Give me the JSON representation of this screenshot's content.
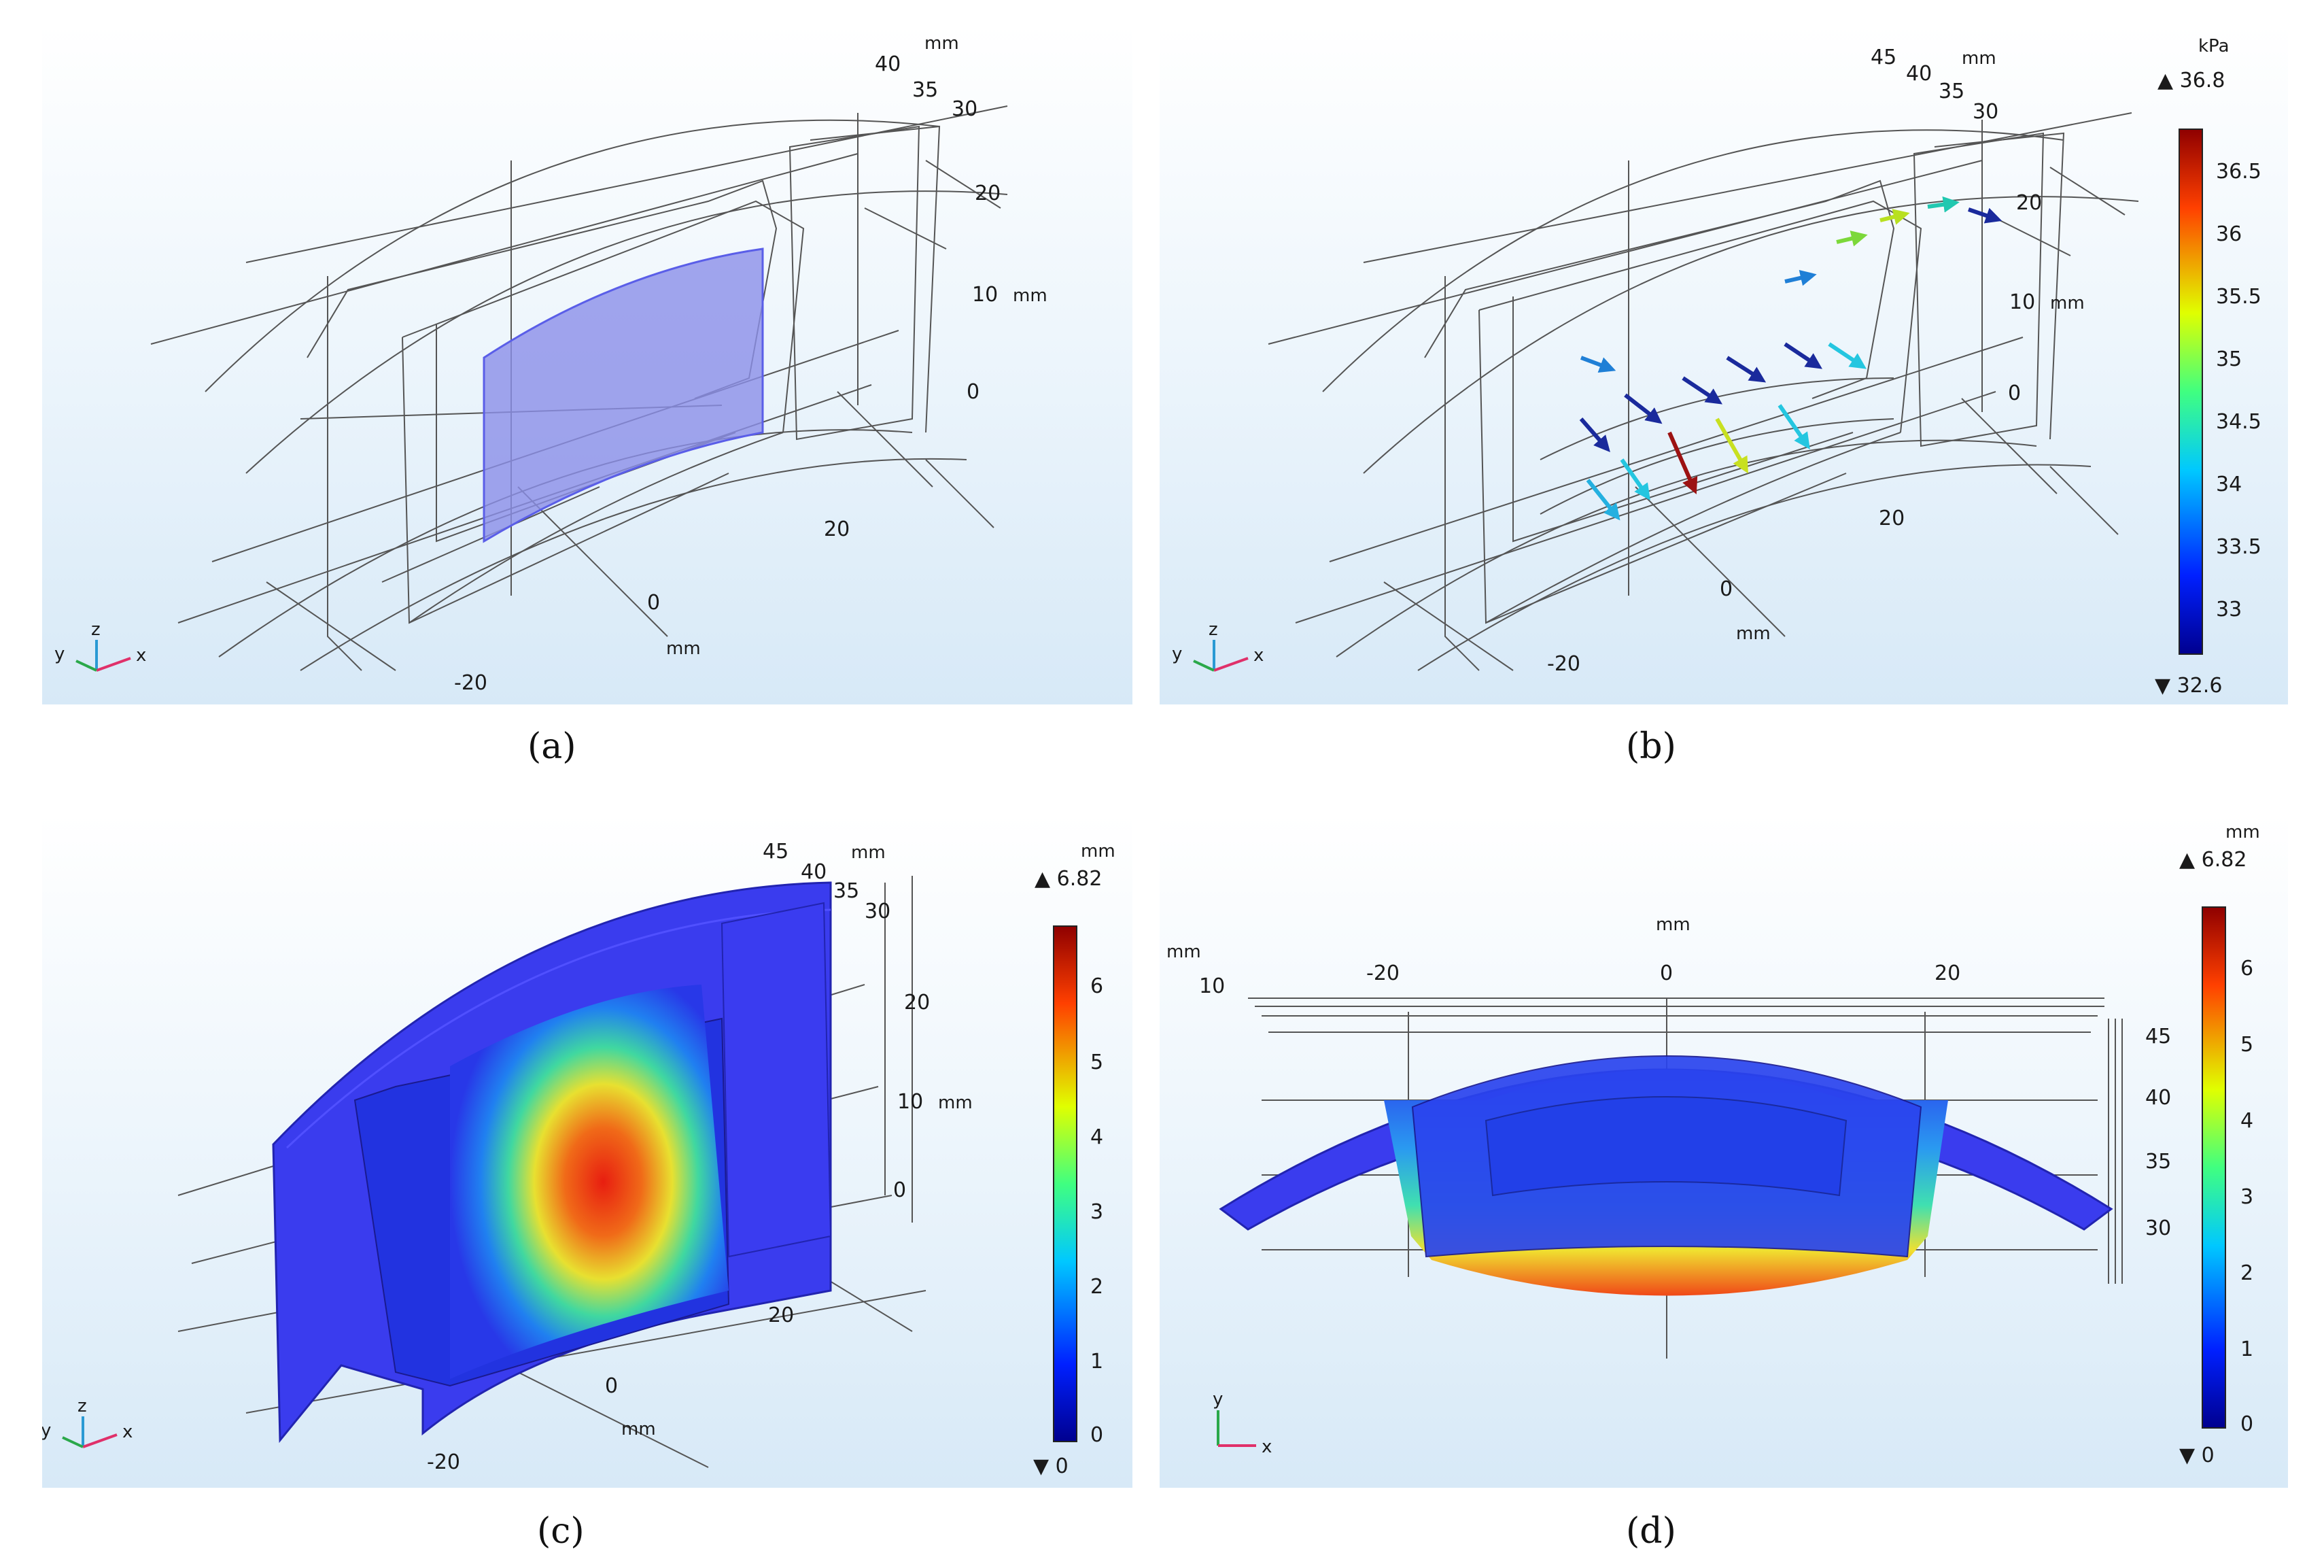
{
  "captions": {
    "a": "(a)",
    "b": "(b)",
    "c": "(c)",
    "d": "(d)"
  },
  "units": {
    "mm": "mm",
    "kpa": "kPa"
  },
  "axis_labels": {
    "x": "x",
    "y": "y",
    "z": "z"
  },
  "panel_a": {
    "depth_ticks": [
      "40",
      "35",
      "30"
    ],
    "z_ticks": [
      "20",
      "10",
      "0"
    ],
    "x_ticks": [
      "20",
      "0",
      "-20"
    ],
    "highlight_color": "#8b8fe8"
  },
  "panel_b": {
    "depth_ticks": [
      "45",
      "40",
      "35",
      "30"
    ],
    "z_ticks": [
      "20",
      "10",
      "0"
    ],
    "x_ticks": [
      "20",
      "0",
      "-20"
    ],
    "colorbar": {
      "max_label": "▲ 36.8",
      "min_label": "▼ 32.6",
      "ticks": [
        "36.5",
        "36",
        "35.5",
        "35",
        "34.5",
        "34",
        "33.5",
        "33"
      ]
    }
  },
  "panel_c": {
    "depth_ticks": [
      "45",
      "40",
      "35",
      "30"
    ],
    "z_ticks": [
      "20",
      "10",
      "0"
    ],
    "x_ticks": [
      "20",
      "0",
      "-20"
    ],
    "colorbar": {
      "max_label": "▲ 6.82",
      "min_label": "▼ 0",
      "ticks": [
        "6",
        "5",
        "4",
        "3",
        "2",
        "1",
        "0"
      ]
    }
  },
  "panel_d": {
    "x_ticks": [
      "-20",
      "0",
      "20"
    ],
    "left_tick": "10",
    "z_ticks": [
      "45",
      "40",
      "35",
      "30"
    ],
    "colorbar": {
      "max_label": "▲ 6.82",
      "min_label": "▼ 0",
      "ticks": [
        "6",
        "5",
        "4",
        "3",
        "2",
        "1",
        "0"
      ]
    }
  },
  "colors": {
    "structure": "#3b3df0",
    "wire": "#555555"
  }
}
